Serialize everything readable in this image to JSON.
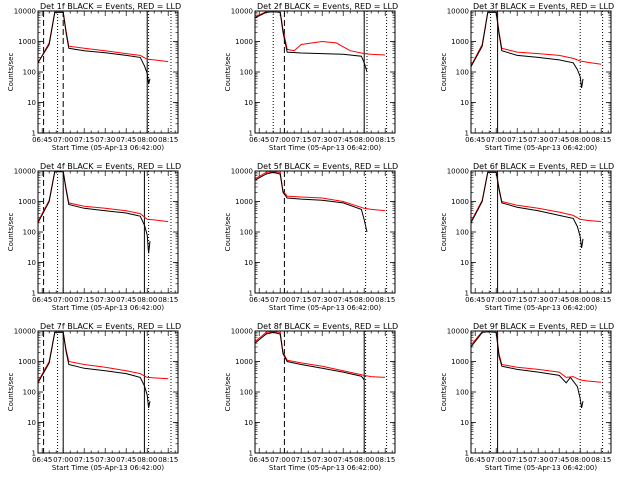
{
  "chart_data": [
    {
      "type": "line",
      "title": "Det 1f BLACK = Events, RED = LLD",
      "xlabel": "Start Time (05-Apr-13 06:42:00)",
      "ylabel": "Counts/sec",
      "y_scale": "log",
      "ylim": [
        1,
        10000
      ],
      "xlim": [
        "06:42",
        "08:22"
      ],
      "x_ticks": [
        "06:45",
        "07:00",
        "07:15",
        "07:30",
        "07:45",
        "08:00",
        "08:15"
      ],
      "y_ticks": [
        "1",
        "10",
        "100",
        "1000",
        "10000"
      ],
      "series": [
        {
          "name": "Events",
          "color": "#000000",
          "x": [
            "06:42",
            "06:50",
            "06:54",
            "07:00",
            "07:02",
            "07:04",
            "07:15",
            "07:30",
            "07:45",
            "07:55",
            "07:58",
            "08:00",
            "08:01",
            "08:02"
          ],
          "y": [
            200,
            800,
            9000,
            9000,
            2000,
            600,
            500,
            430,
            350,
            300,
            160,
            90,
            40,
            60
          ]
        },
        {
          "name": "LLD",
          "color": "#ff0000",
          "x": [
            "06:42",
            "06:50",
            "06:54",
            "07:00",
            "07:02",
            "07:04",
            "07:15",
            "07:30",
            "07:45",
            "07:55",
            "08:00",
            "08:05",
            "08:15"
          ],
          "y": [
            200,
            900,
            9500,
            9500,
            2300,
            700,
            600,
            500,
            400,
            350,
            260,
            250,
            220
          ]
        }
      ],
      "vlines": [
        {
          "x": "06:46",
          "style": "dashed"
        },
        {
          "x": "06:56",
          "style": "dotted"
        },
        {
          "x": "07:00",
          "style": "dashed"
        },
        {
          "x": "08:00",
          "style": "solid"
        },
        {
          "x": "08:01",
          "style": "dotted"
        },
        {
          "x": "08:17",
          "style": "dotted"
        }
      ]
    },
    {
      "type": "line",
      "title": "Det 2f BLACK = Events, RED = LLD",
      "xlabel": "Start Time (05-Apr-13 06:42:00)",
      "ylabel": "Counts/sec",
      "y_scale": "log",
      "ylim": [
        1,
        10000
      ],
      "xlim": [
        "06:42",
        "08:22"
      ],
      "x_ticks": [
        "06:45",
        "07:00",
        "07:15",
        "07:30",
        "07:45",
        "08:00",
        "08:15"
      ],
      "y_ticks": [
        "1",
        "10",
        "100",
        "1000",
        "10000"
      ],
      "series": [
        {
          "name": "Events",
          "color": "#000000",
          "x": [
            "06:42",
            "06:50",
            "06:55",
            "07:00",
            "07:02",
            "07:05",
            "07:15",
            "07:30",
            "07:45",
            "07:58",
            "08:00",
            "08:02"
          ],
          "y": [
            6000,
            9000,
            9500,
            9000,
            2000,
            450,
            420,
            400,
            380,
            330,
            200,
            100
          ]
        },
        {
          "name": "LLD",
          "color": "#ff0000",
          "x": [
            "06:42",
            "06:50",
            "06:55",
            "07:00",
            "07:02",
            "07:05",
            "07:10",
            "07:15",
            "07:30",
            "07:40",
            "07:50",
            "08:00",
            "08:05",
            "08:15"
          ],
          "y": [
            6500,
            9500,
            10000,
            9500,
            2500,
            550,
            500,
            800,
            1000,
            900,
            500,
            400,
            380,
            360
          ]
        }
      ],
      "vlines": [
        {
          "x": "06:55",
          "style": "dotted"
        },
        {
          "x": "07:03",
          "style": "dashed"
        },
        {
          "x": "08:00",
          "style": "solid"
        },
        {
          "x": "08:02",
          "style": "dotted"
        },
        {
          "x": "08:16",
          "style": "dotted"
        }
      ]
    },
    {
      "type": "line",
      "title": "Det 3f BLACK = Events, RED = LLD",
      "xlabel": "Start Time (05-Apr-13 06:42:00)",
      "ylabel": "Counts/sec",
      "y_scale": "log",
      "ylim": [
        1,
        10000
      ],
      "xlim": [
        "06:42",
        "08:22"
      ],
      "x_ticks": [
        "06:45",
        "07:00",
        "07:15",
        "07:30",
        "07:45",
        "08:00",
        "08:15"
      ],
      "y_ticks": [
        "1",
        "10",
        "100",
        "1000",
        "10000"
      ],
      "series": [
        {
          "name": "Events",
          "color": "#000000",
          "x": [
            "06:42",
            "06:50",
            "06:54",
            "07:00",
            "07:02",
            "07:04",
            "07:15",
            "07:30",
            "07:45",
            "07:55",
            "07:58",
            "08:00",
            "08:01",
            "08:02"
          ],
          "y": [
            150,
            700,
            9000,
            9000,
            1800,
            500,
            350,
            300,
            250,
            200,
            120,
            70,
            30,
            60
          ]
        },
        {
          "name": "LLD",
          "color": "#ff0000",
          "x": [
            "06:42",
            "06:50",
            "06:54",
            "07:00",
            "07:02",
            "07:04",
            "07:15",
            "07:30",
            "07:45",
            "07:55",
            "08:00",
            "08:05",
            "08:15"
          ],
          "y": [
            160,
            800,
            9500,
            9500,
            2100,
            600,
            450,
            400,
            350,
            280,
            230,
            210,
            180
          ]
        }
      ],
      "vlines": [
        {
          "x": "06:56",
          "style": "dotted"
        },
        {
          "x": "07:01",
          "style": "solid"
        },
        {
          "x": "08:00",
          "style": "dotted"
        },
        {
          "x": "08:16",
          "style": "dotted"
        }
      ]
    },
    {
      "type": "line",
      "title": "Det 4f BLACK = Events, RED = LLD",
      "xlabel": "Start Time (05-Apr-13 06:42:00)",
      "ylabel": "Counts/sec",
      "y_scale": "log",
      "ylim": [
        1,
        10000
      ],
      "xlim": [
        "06:42",
        "08:22"
      ],
      "x_ticks": [
        "06:45",
        "07:00",
        "07:15",
        "07:30",
        "07:45",
        "08:00",
        "08:15"
      ],
      "y_ticks": [
        "1",
        "10",
        "100",
        "1000",
        "10000"
      ],
      "series": [
        {
          "name": "Events",
          "color": "#000000",
          "x": [
            "06:42",
            "06:50",
            "06:54",
            "07:00",
            "07:02",
            "07:04",
            "07:15",
            "07:30",
            "07:45",
            "07:55",
            "07:58",
            "08:00",
            "08:01",
            "08:02"
          ],
          "y": [
            200,
            1000,
            9500,
            9500,
            2500,
            800,
            600,
            500,
            420,
            330,
            170,
            80,
            20,
            50
          ]
        },
        {
          "name": "LLD",
          "color": "#ff0000",
          "x": [
            "06:42",
            "06:50",
            "06:54",
            "07:00",
            "07:02",
            "07:04",
            "07:15",
            "07:30",
            "07:45",
            "07:55",
            "08:00",
            "08:05",
            "08:15"
          ],
          "y": [
            220,
            1100,
            10000,
            10000,
            2800,
            900,
            700,
            600,
            500,
            400,
            260,
            250,
            220
          ]
        }
      ],
      "vlines": [
        {
          "x": "06:46",
          "style": "dashed"
        },
        {
          "x": "06:56",
          "style": "dotted"
        },
        {
          "x": "07:00",
          "style": "solid"
        },
        {
          "x": "07:58",
          "style": "solid"
        },
        {
          "x": "08:01",
          "style": "dotted"
        },
        {
          "x": "08:17",
          "style": "dotted"
        }
      ]
    },
    {
      "type": "line",
      "title": "Det 5f BLACK = Events, RED = LLD",
      "xlabel": "Start Time (05-Apr-13 06:42:00)",
      "ylabel": "Counts/sec",
      "y_scale": "log",
      "ylim": [
        1,
        10000
      ],
      "xlim": [
        "06:42",
        "08:22"
      ],
      "x_ticks": [
        "06:45",
        "07:00",
        "07:15",
        "07:30",
        "07:45",
        "08:00",
        "08:15"
      ],
      "y_ticks": [
        "1",
        "10",
        "100",
        "1000",
        "10000"
      ],
      "series": [
        {
          "name": "Events",
          "color": "#000000",
          "x": [
            "06:42",
            "06:50",
            "06:55",
            "07:00",
            "07:02",
            "07:05",
            "07:15",
            "07:30",
            "07:45",
            "07:58",
            "08:00",
            "08:02"
          ],
          "y": [
            5000,
            8000,
            9000,
            8000,
            2000,
            1300,
            1200,
            1100,
            900,
            550,
            250,
            100
          ]
        },
        {
          "name": "LLD",
          "color": "#ff0000",
          "x": [
            "06:42",
            "06:50",
            "06:55",
            "07:00",
            "07:02",
            "07:05",
            "07:15",
            "07:30",
            "07:45",
            "08:00",
            "08:05",
            "08:15"
          ],
          "y": [
            5500,
            9000,
            9500,
            9000,
            2200,
            1500,
            1400,
            1300,
            1000,
            600,
            550,
            500
          ]
        }
      ],
      "vlines": [
        {
          "x": "07:03",
          "style": "dashed"
        },
        {
          "x": "08:01",
          "style": "dotted"
        },
        {
          "x": "08:16",
          "style": "dotted"
        }
      ]
    },
    {
      "type": "line",
      "title": "Det 6f BLACK = Events, RED = LLD",
      "xlabel": "Start Time (05-Apr-13 06:42:00)",
      "ylabel": "Counts/sec",
      "y_scale": "log",
      "ylim": [
        1,
        10000
      ],
      "xlim": [
        "06:42",
        "08:22"
      ],
      "x_ticks": [
        "06:45",
        "07:00",
        "07:15",
        "07:30",
        "07:45",
        "08:00",
        "08:15"
      ],
      "y_ticks": [
        "1",
        "10",
        "100",
        "1000",
        "10000"
      ],
      "series": [
        {
          "name": "Events",
          "color": "#000000",
          "x": [
            "06:42",
            "06:50",
            "06:54",
            "07:00",
            "07:02",
            "07:04",
            "07:15",
            "07:30",
            "07:45",
            "07:55",
            "07:58",
            "08:00",
            "08:01",
            "08:02"
          ],
          "y": [
            200,
            1000,
            9000,
            9000,
            2500,
            900,
            650,
            500,
            350,
            280,
            150,
            70,
            30,
            60
          ]
        },
        {
          "name": "LLD",
          "color": "#ff0000",
          "x": [
            "06:42",
            "06:50",
            "06:54",
            "07:00",
            "07:02",
            "07:04",
            "07:15",
            "07:30",
            "07:45",
            "07:55",
            "08:00",
            "08:05",
            "08:15"
          ],
          "y": [
            220,
            1100,
            9500,
            9500,
            2800,
            1000,
            750,
            600,
            450,
            350,
            260,
            240,
            220
          ]
        }
      ],
      "vlines": [
        {
          "x": "06:56",
          "style": "dotted"
        },
        {
          "x": "07:01",
          "style": "solid"
        },
        {
          "x": "08:00",
          "style": "dotted"
        },
        {
          "x": "08:16",
          "style": "dotted"
        }
      ]
    },
    {
      "type": "line",
      "title": "Det 7f BLACK = Events, RED = LLD",
      "xlabel": "Start Time (05-Apr-13 06:42:00)",
      "ylabel": "Counts/sec",
      "y_scale": "log",
      "ylim": [
        1,
        10000
      ],
      "xlim": [
        "06:42",
        "08:22"
      ],
      "x_ticks": [
        "06:45",
        "07:00",
        "07:15",
        "07:30",
        "07:45",
        "08:00",
        "08:15"
      ],
      "y_ticks": [
        "1",
        "10",
        "100",
        "1000",
        "10000"
      ],
      "series": [
        {
          "name": "Events",
          "color": "#000000",
          "x": [
            "06:42",
            "06:50",
            "06:54",
            "07:00",
            "07:02",
            "07:04",
            "07:15",
            "07:30",
            "07:45",
            "07:55",
            "07:58",
            "08:00",
            "08:01",
            "08:02"
          ],
          "y": [
            200,
            900,
            9000,
            9000,
            2200,
            800,
            600,
            500,
            400,
            300,
            160,
            80,
            30,
            50
          ]
        },
        {
          "name": "LLD",
          "color": "#ff0000",
          "x": [
            "06:42",
            "06:50",
            "06:54",
            "07:00",
            "07:02",
            "07:04",
            "07:15",
            "07:30",
            "07:45",
            "07:55",
            "08:00",
            "08:05",
            "08:15"
          ],
          "y": [
            220,
            1000,
            9500,
            9500,
            2500,
            1000,
            800,
            650,
            500,
            400,
            300,
            290,
            270
          ]
        }
      ],
      "vlines": [
        {
          "x": "06:46",
          "style": "dashed"
        },
        {
          "x": "06:56",
          "style": "dotted"
        },
        {
          "x": "07:00",
          "style": "solid"
        },
        {
          "x": "07:58",
          "style": "solid"
        },
        {
          "x": "08:01",
          "style": "dotted"
        },
        {
          "x": "08:17",
          "style": "dotted"
        }
      ]
    },
    {
      "type": "line",
      "title": "Det 8f BLACK = Events, RED = LLD",
      "xlabel": "Start Time (05-Apr-13 06:42:00)",
      "ylabel": "Counts/sec",
      "y_scale": "log",
      "ylim": [
        1,
        10000
      ],
      "xlim": [
        "06:42",
        "08:22"
      ],
      "x_ticks": [
        "06:45",
        "07:00",
        "07:15",
        "07:30",
        "07:45",
        "08:00",
        "08:15"
      ],
      "y_ticks": [
        "1",
        "10",
        "100",
        "1000",
        "10000"
      ],
      "series": [
        {
          "name": "Events",
          "color": "#000000",
          "x": [
            "06:42",
            "06:50",
            "06:55",
            "07:00",
            "07:02",
            "07:05",
            "07:15",
            "07:30",
            "07:45",
            "07:58",
            "08:00"
          ],
          "y": [
            4000,
            8000,
            9000,
            8000,
            1800,
            1000,
            800,
            600,
            450,
            330,
            250
          ]
        },
        {
          "name": "LLD",
          "color": "#ff0000",
          "x": [
            "06:42",
            "06:50",
            "06:55",
            "07:00",
            "07:02",
            "07:05",
            "07:15",
            "07:30",
            "07:45",
            "08:00",
            "08:05",
            "08:15"
          ],
          "y": [
            4500,
            9000,
            9500,
            9000,
            2000,
            1100,
            900,
            700,
            500,
            350,
            320,
            300
          ]
        }
      ],
      "vlines": [
        {
          "x": "07:03",
          "style": "dashed"
        },
        {
          "x": "08:00",
          "style": "solid"
        },
        {
          "x": "08:01",
          "style": "dotted"
        },
        {
          "x": "08:16",
          "style": "dotted"
        }
      ]
    },
    {
      "type": "line",
      "title": "Det 9f BLACK = Events, RED = LLD",
      "xlabel": "Start Time (05-Apr-13 06:42:00)",
      "ylabel": "Counts/sec",
      "y_scale": "log",
      "ylim": [
        1,
        10000
      ],
      "xlim": [
        "06:42",
        "08:22"
      ],
      "x_ticks": [
        "06:45",
        "07:00",
        "07:15",
        "07:30",
        "07:45",
        "08:00",
        "08:15"
      ],
      "y_ticks": [
        "1",
        "10",
        "100",
        "1000",
        "10000"
      ],
      "series": [
        {
          "name": "Events",
          "color": "#000000",
          "x": [
            "06:42",
            "06:50",
            "06:54",
            "07:00",
            "07:02",
            "07:04",
            "07:15",
            "07:30",
            "07:45",
            "07:50",
            "07:53",
            "07:58",
            "08:00",
            "08:01",
            "08:02"
          ],
          "y": [
            3000,
            9000,
            9500,
            9000,
            1500,
            700,
            550,
            450,
            350,
            200,
            300,
            150,
            60,
            30,
            50
          ]
        },
        {
          "name": "LLD",
          "color": "#ff0000",
          "x": [
            "06:42",
            "06:50",
            "06:54",
            "07:00",
            "07:02",
            "07:04",
            "07:15",
            "07:30",
            "07:45",
            "07:50",
            "07:55",
            "08:00",
            "08:05",
            "08:15"
          ],
          "y": [
            3500,
            9500,
            10000,
            9500,
            1800,
            800,
            650,
            550,
            450,
            300,
            320,
            250,
            230,
            210
          ]
        }
      ],
      "vlines": [
        {
          "x": "06:56",
          "style": "dotted"
        },
        {
          "x": "07:01",
          "style": "solid"
        },
        {
          "x": "08:00",
          "style": "dotted"
        },
        {
          "x": "08:16",
          "style": "dotted"
        }
      ]
    }
  ]
}
